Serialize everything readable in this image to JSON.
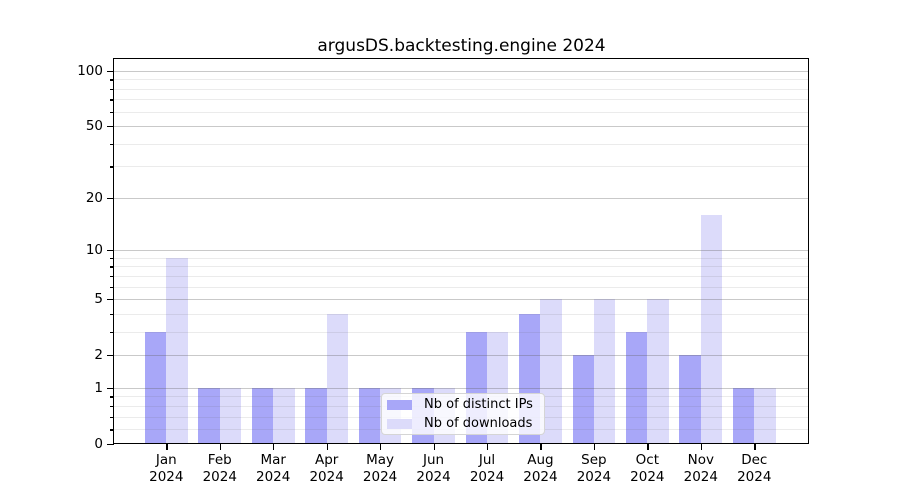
{
  "chart_data": {
    "type": "bar",
    "title": "argusDS.backtesting.engine 2024",
    "months": [
      "Jan",
      "Feb",
      "Mar",
      "Apr",
      "May",
      "Jun",
      "Jul",
      "Aug",
      "Sep",
      "Oct",
      "Nov",
      "Dec"
    ],
    "year_label": "2024",
    "categories": [
      "Jan 2024",
      "Feb 2024",
      "Mar 2024",
      "Apr 2024",
      "May 2024",
      "Jun 2024",
      "Jul 2024",
      "Aug 2024",
      "Sep 2024",
      "Oct 2024",
      "Nov 2024",
      "Dec 2024"
    ],
    "series": [
      {
        "key": "distinct-ips",
        "name": "Nb of distinct IPs",
        "color": "#a8a7f8",
        "values": [
          3,
          1,
          1,
          1,
          1,
          1,
          3,
          4,
          2,
          3,
          2,
          1
        ]
      },
      {
        "key": "downloads",
        "name": "Nb of downloads",
        "color": "#dcdbfa",
        "values": [
          9,
          1,
          1,
          4,
          1,
          1,
          3,
          5,
          5,
          5,
          16,
          1
        ]
      }
    ],
    "yscale": "log1p",
    "ylim": [
      0,
      116
    ],
    "yticks": [
      0,
      1,
      2,
      5,
      10,
      20,
      50,
      100
    ],
    "yticks_minor": [
      0.2,
      0.4,
      0.6,
      0.8,
      3,
      4,
      6,
      7,
      8,
      9,
      30,
      40,
      60,
      70,
      80,
      90
    ],
    "xlabel": "",
    "ylabel": "",
    "grid": "both",
    "grid_above_bars": true,
    "legend": {
      "location": "lower center",
      "labels": [
        "Nb of distinct IPs",
        "Nb of downloads"
      ]
    },
    "colors": {
      "background": "#ffffff",
      "spine": "#000000",
      "major_grid": "#c8c8c8",
      "minor_grid": "#ebebeb"
    }
  }
}
